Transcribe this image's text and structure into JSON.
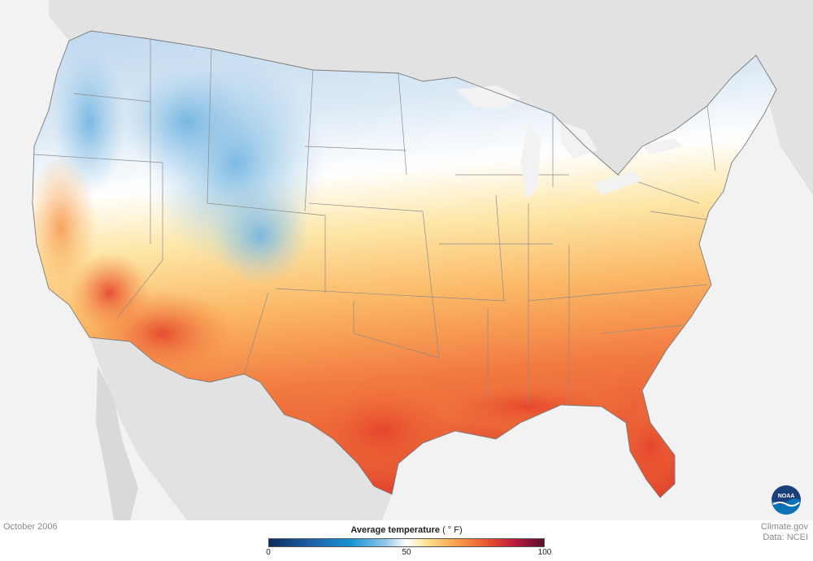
{
  "map": {
    "date_label": "October 2006",
    "credit_site": "Climate.gov",
    "credit_data": "Data: NCEI",
    "logo_text": "NOAA",
    "legend": {
      "title": "Average temperature",
      "unit": "( ° F)",
      "ticks": [
        "0",
        "50",
        "100"
      ],
      "range": [
        0,
        100
      ]
    },
    "colors": {
      "cold": "#1a95d3",
      "cool": "#cfe3f2",
      "neutral": "#ffffff",
      "warm": "#fdc26a",
      "hot": "#e8502e",
      "land_outside": "#e2e2e2",
      "ocean": "#f2f2f2"
    }
  }
}
